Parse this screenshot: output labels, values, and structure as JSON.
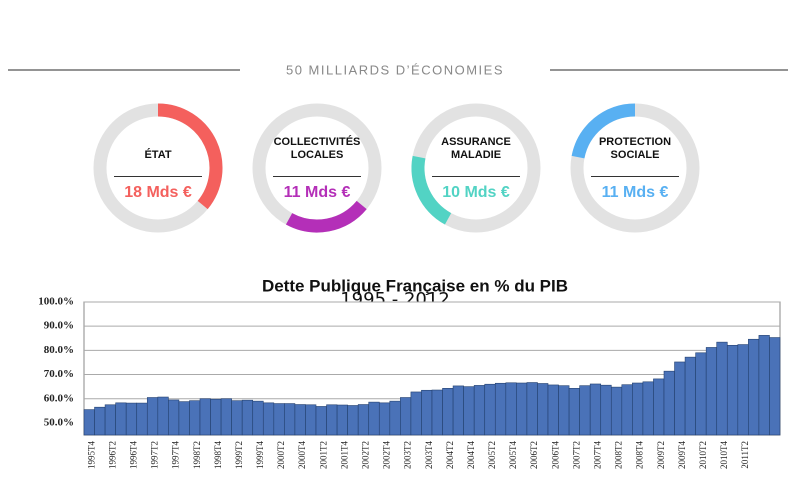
{
  "chart_data": [
    {
      "type": "donut",
      "title": "50 MILLIARDS D’ÉCONOMIES",
      "categories": [
        "ÉTAT",
        "COLLECTIVITÉS LOCALES",
        "ASSURANCE MALADIE",
        "PROTECTION SOCIALE"
      ],
      "values": [
        18,
        11,
        10,
        11
      ],
      "value_labels": [
        "18 Mds €",
        "11 Mds €",
        "10 Mds €",
        "11 Mds €"
      ],
      "colors": [
        "#f4605d",
        "#b42fb8",
        "#52d3c4",
        "#58b0f2"
      ]
    },
    {
      "type": "bar",
      "title": "Dette Publique Française en % du PIB",
      "subtitle": "1995 - 2012",
      "categories": [
        "1995T4",
        null,
        "1996T2",
        null,
        "1996T4",
        null,
        "1997T2",
        null,
        "1997T4",
        null,
        "1998T2",
        null,
        "1998T4",
        null,
        "1999T2",
        null,
        "1999T4",
        null,
        "2000T2",
        null,
        "2000T4",
        null,
        "2001T2",
        null,
        "2001T4",
        null,
        "2002T2",
        null,
        "2002T4",
        null,
        "2003T2",
        null,
        "2003T4",
        null,
        "2004T2",
        null,
        "2004T4",
        null,
        "2005T2",
        null,
        "2005T4",
        null,
        "2006T2",
        null,
        "2006T4",
        null,
        "2007T2",
        null,
        "2007T4",
        null,
        "2008T2",
        null,
        "2008T4",
        null,
        "2009T2",
        null,
        "2009T4",
        null,
        "2010T2",
        null,
        "2010T4",
        null,
        "2011T2",
        null,
        null,
        null
      ],
      "values": [
        55.5,
        56.5,
        57.5,
        58.3,
        58.2,
        58.2,
        60.5,
        60.7,
        59.5,
        58.8,
        59.2,
        60,
        59.8,
        60,
        59.2,
        59.4,
        59,
        58.3,
        58,
        58,
        57.6,
        57.5,
        56.8,
        57.5,
        57.4,
        57.2,
        57.6,
        58.6,
        58.3,
        59,
        60.5,
        62.8,
        63.5,
        63.6,
        64.3,
        65.3,
        65,
        65.5,
        66,
        66.4,
        66.6,
        66.5,
        66.7,
        66.3,
        65.7,
        65.4,
        64.3,
        65.4,
        66.1,
        65.6,
        64.8,
        65.8,
        66.5,
        67,
        68.2,
        71.4,
        75.2,
        77.2,
        79,
        81.2,
        83.4,
        82.1,
        82.4,
        84.6,
        86.2,
        85.3
      ],
      "color": "#4a72b8",
      "ylim": [
        45,
        100
      ],
      "yticks": [
        {
          "value": 50,
          "label": "50.0%"
        },
        {
          "value": 60,
          "label": "60.0%"
        },
        {
          "value": 70,
          "label": "70.0%"
        },
        {
          "value": 80,
          "label": "80.0%"
        },
        {
          "value": 90,
          "label": "90.0%"
        },
        {
          "value": 100,
          "label": "100.0%"
        }
      ],
      "grid": true
    }
  ]
}
